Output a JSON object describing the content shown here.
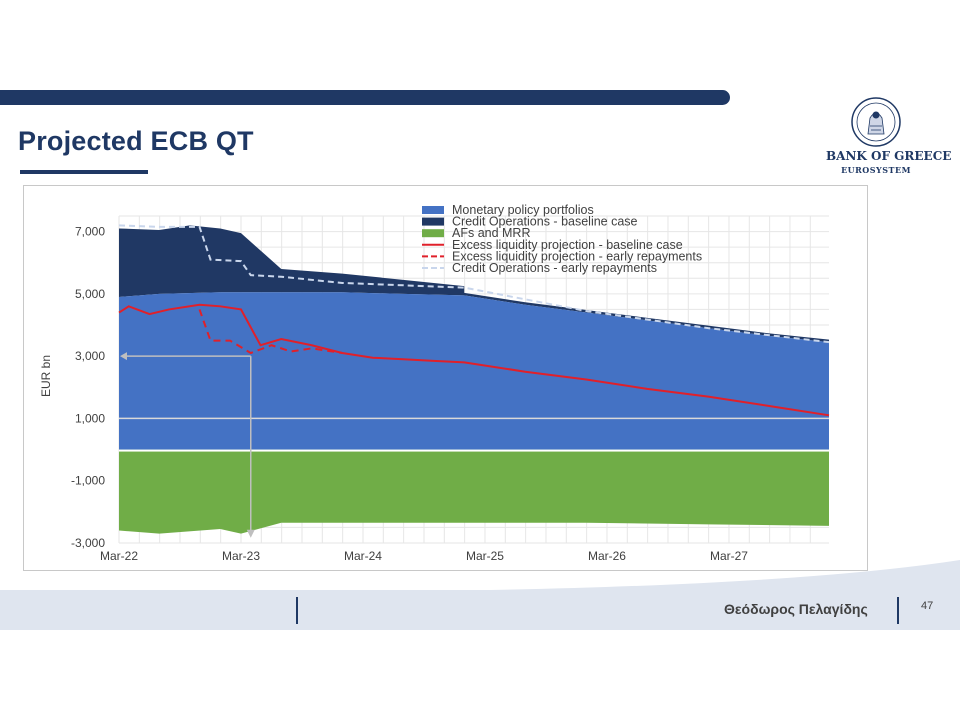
{
  "slide": {
    "title": "Projected ECB QT",
    "author": "Θεόδωρος Πελαγίδης",
    "page_number": "47"
  },
  "logo": {
    "name": "BANK OF GREECE",
    "sub": "EUROSYSTEM",
    "icon": "bank-seal-icon"
  },
  "colors": {
    "navy": "#1f3864",
    "portfolio": "#4472c4",
    "credit": "#203864",
    "afs": "#70ad47",
    "excess": "#e0202a",
    "credit_early": "#c9d6ec"
  },
  "chart_data": {
    "type": "area",
    "ylabel": "EUR bn",
    "xlabel": "",
    "ylim": [
      -3000,
      7500
    ],
    "yticks": [
      "7,000",
      "5,000",
      "3,000",
      "1,000",
      "-1,000",
      "-3,000"
    ],
    "ytick_values": [
      7000,
      5000,
      3000,
      1000,
      -1000,
      -3000
    ],
    "xticks": [
      "Mar-22",
      "Mar-23",
      "Mar-24",
      "Mar-25",
      "Mar-26",
      "Mar-27"
    ],
    "xtick_values": [
      2022.17,
      2023.17,
      2024.17,
      2025.17,
      2026.17,
      2027.17
    ],
    "xlim": [
      2022.17,
      2027.99
    ],
    "grid": true,
    "legend_position": "top-right",
    "series": [
      {
        "name": "Monetary policy portfolios",
        "kind": "area",
        "x": [
          2022.17,
          2022.5,
          2023.0,
          2023.5,
          2024.0,
          2024.5,
          2025.0,
          2025.5,
          2026.0,
          2026.5,
          2027.0,
          2027.5,
          2027.99
        ],
        "y": [
          4900,
          5000,
          5050,
          5050,
          5050,
          5000,
          4950,
          4650,
          4400,
          4150,
          3900,
          3650,
          3450
        ]
      },
      {
        "name": "Credit Operations - baseline case",
        "kind": "area",
        "x": [
          2022.17,
          2022.5,
          2022.75,
          2023.0,
          2023.17,
          2023.5,
          2024.0,
          2024.5,
          2025.0
        ],
        "y": [
          7100,
          7050,
          7200,
          7100,
          6950,
          5800,
          5650,
          5450,
          5250
        ]
      },
      {
        "name": "AFs and MRR",
        "kind": "area",
        "x": [
          2022.17,
          2022.5,
          2023.0,
          2023.17,
          2023.5,
          2024.0,
          2025.0,
          2026.0,
          2027.0,
          2027.99
        ],
        "y": [
          -2600,
          -2700,
          -2550,
          -2700,
          -2350,
          -2350,
          -2350,
          -2350,
          -2400,
          -2450
        ]
      },
      {
        "name": "Excess liquidity projection - baseline case",
        "kind": "line",
        "x": [
          2022.17,
          2022.25,
          2022.42,
          2022.58,
          2022.83,
          2023.0,
          2023.17,
          2023.33,
          2023.5,
          2023.75,
          2024.0,
          2024.25,
          2024.5,
          2024.75,
          2025.0,
          2025.5,
          2026.0,
          2026.5,
          2027.0,
          2027.5,
          2027.99
        ],
        "y": [
          4400,
          4600,
          4350,
          4500,
          4650,
          4600,
          4500,
          3350,
          3550,
          3350,
          3100,
          2950,
          2900,
          2850,
          2800,
          2500,
          2250,
          1950,
          1700,
          1400,
          1100
        ]
      },
      {
        "name": "Excess liquidity projection - early repayments",
        "kind": "dashed-line",
        "x": [
          2022.83,
          2022.92,
          2023.08,
          2023.25,
          2023.42,
          2023.58,
          2023.75,
          2024.0
        ],
        "y": [
          4500,
          3500,
          3500,
          3100,
          3350,
          3150,
          3250,
          3100
        ]
      },
      {
        "name": "Credit Operations - early repayments",
        "kind": "dashed-line",
        "x": [
          2022.17,
          2022.5,
          2022.83,
          2022.92,
          2023.17,
          2023.25,
          2023.5,
          2024.0,
          2025.0,
          2026.0,
          2027.0,
          2027.99
        ],
        "y": [
          7200,
          7150,
          7150,
          6100,
          6050,
          5600,
          5550,
          5350,
          5200,
          4450,
          3900,
          3450
        ]
      }
    ],
    "annotations": [
      {
        "label": "",
        "kind": "reference-arrow",
        "y": 3000,
        "x_from": 2022.17,
        "x_to": 2023.25
      },
      {
        "label": "",
        "kind": "reference-arrow",
        "x": 2023.25,
        "y_from": 3000,
        "y_to": -2800
      },
      {
        "label": "",
        "kind": "reference-line",
        "y": 1000
      }
    ]
  }
}
